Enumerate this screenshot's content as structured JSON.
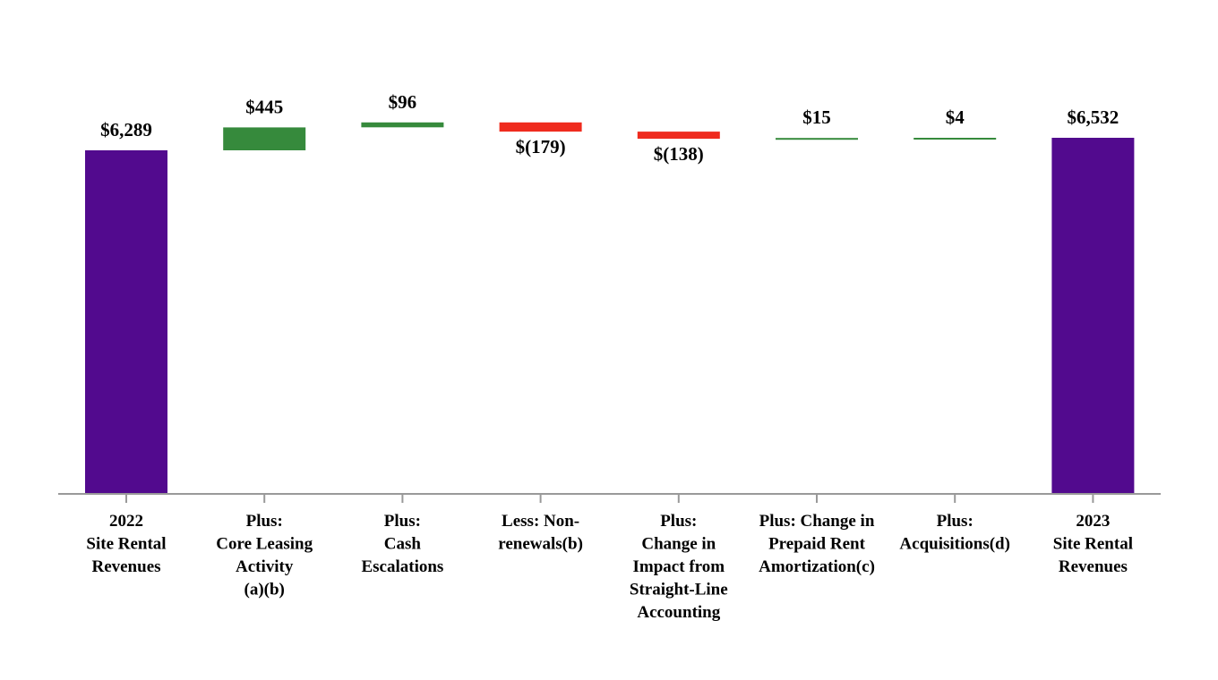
{
  "chart_data": {
    "type": "waterfall",
    "title": "",
    "xlabel": "",
    "ylabel": "",
    "categories": [
      "2022 Site Rental Revenues",
      "Plus: Core Leasing Activity (a)(b)",
      "Plus: Cash Escalations",
      "Less: Non-renewals(b)",
      "Plus: Change in Impact from Straight-Line Accounting",
      "Plus: Change in Prepaid Rent Amortization(c)",
      "Plus: Acquisitions(d)",
      "2023 Site Rental Revenues"
    ],
    "category_lines": [
      [
        "2022",
        "Site Rental",
        "Revenues"
      ],
      [
        "Plus:",
        "Core Leasing",
        "Activity",
        "(a)(b)"
      ],
      [
        "Plus:",
        "Cash",
        "Escalations"
      ],
      [
        "Less: Non-",
        "renewals(b)"
      ],
      [
        "Plus:",
        "Change in",
        "Impact from",
        "Straight-Line",
        "Accounting"
      ],
      [
        "Plus: Change in",
        "Prepaid Rent",
        "Amortization(c)"
      ],
      [
        "Plus:",
        "Acquisitions(d)"
      ],
      [
        "2023",
        "Site Rental",
        "Revenues"
      ]
    ],
    "values": [
      6289,
      445,
      96,
      -179,
      -138,
      15,
      4,
      6532
    ],
    "kinds": [
      "total",
      "delta",
      "delta",
      "delta",
      "delta",
      "delta",
      "delta",
      "total"
    ],
    "value_labels": [
      "$6,289",
      "$445",
      "$96",
      "$(179)",
      "$(138)",
      "$15",
      "$4",
      "$6,532"
    ],
    "colors": {
      "total": "#520a8e",
      "increase": "#368a3c",
      "decrease": "#ef2b1e"
    },
    "grid": false,
    "legend": "none"
  }
}
